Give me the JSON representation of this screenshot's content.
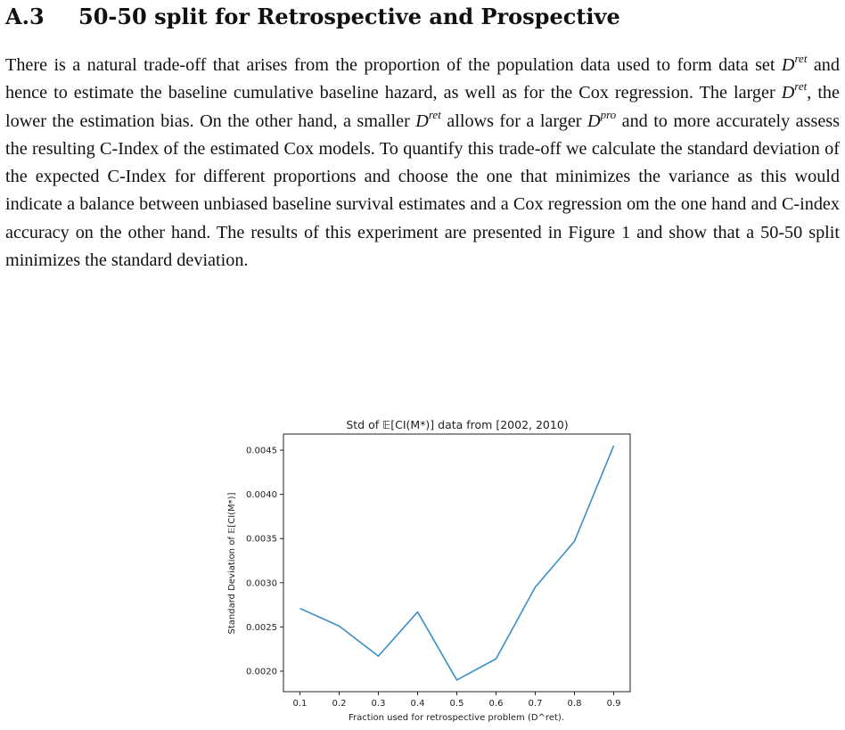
{
  "section": {
    "number": "A.3",
    "title": "50-50 split for Retrospective and Prospective"
  },
  "paragraph": {
    "s1": "There is a natural trade-off that arises from the proportion of the population data used to form data set ",
    "D": "D",
    "ret": "ret",
    "pro": "pro",
    "s2": " and hence to estimate the baseline cumulative baseline hazard, as well as for the Cox regression. The larger ",
    "s3": ", the lower the estimation bias. On the other hand, a smaller ",
    "s4": " allows for a larger ",
    "s5": " and to more accurately assess the resulting C-Index of the estimated Cox models. To quantify this trade-off we calculate the standard deviation of the expected C-Index for different proportions and choose the one that minimizes the variance as this would indicate a balance between unbiased baseline survival estimates and a Cox regression om the one hand and C-index accuracy on the other hand. The results of this experiment are presented in Figure 1 and show that a 50-50 split minimizes the standard deviation."
  },
  "chart_data": {
    "type": "line",
    "title": "Std of 𝔼[CI(M*)] data from [2002, 2010)",
    "xlabel": "Fraction used for retrospective problem (D^ret).",
    "ylabel": "Standard Deviation of 𝔼[CI(M*)]",
    "x": [
      0.1,
      0.2,
      0.3,
      0.4,
      0.5,
      0.6,
      0.7,
      0.8,
      0.9
    ],
    "series": [
      {
        "values": [
          0.00271,
          0.00251,
          0.00217,
          0.00267,
          0.0019,
          0.00214,
          0.00295,
          0.00347,
          0.00455
        ]
      }
    ],
    "xticks": [
      "0.1",
      "0.2",
      "0.3",
      "0.4",
      "0.5",
      "0.6",
      "0.7",
      "0.8",
      "0.9"
    ],
    "yticks": [
      "0.0020",
      "0.0025",
      "0.0030",
      "0.0035",
      "0.0040",
      "0.0045"
    ],
    "xlim": [
      0.058,
      0.942
    ],
    "ylim": [
      0.001768,
      0.004682
    ],
    "grid": false,
    "line_color": "#3a8fc7"
  }
}
